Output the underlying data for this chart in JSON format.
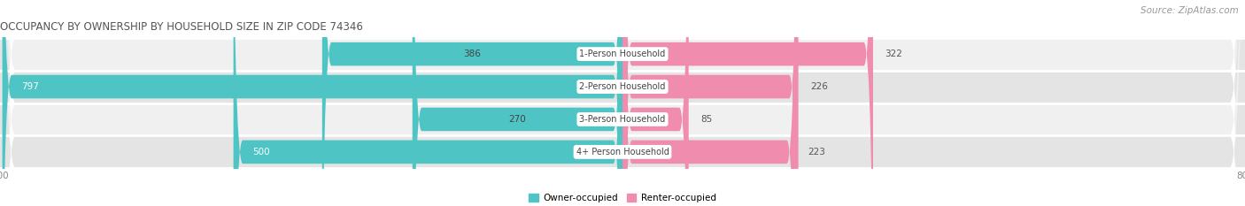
{
  "title": "OCCUPANCY BY OWNERSHIP BY HOUSEHOLD SIZE IN ZIP CODE 74346",
  "source": "Source: ZipAtlas.com",
  "categories": [
    "1-Person Household",
    "2-Person Household",
    "3-Person Household",
    "4+ Person Household"
  ],
  "owner_values": [
    386,
    797,
    270,
    500
  ],
  "renter_values": [
    322,
    226,
    85,
    223
  ],
  "owner_color": "#4ec4c4",
  "renter_color": "#f08cad",
  "owner_color_light": "#a8e0e0",
  "renter_color_light": "#f5bdd0",
  "row_bg_colors": [
    "#f0f0f0",
    "#e4e4e4",
    "#f0f0f0",
    "#e4e4e4"
  ],
  "axis_min": -800,
  "axis_max": 800,
  "figsize": [
    14.06,
    2.33
  ],
  "dpi": 100,
  "title_fontsize": 8.5,
  "source_fontsize": 7.5,
  "bar_label_fontsize": 7.5,
  "category_label_fontsize": 7,
  "legend_fontsize": 7.5,
  "axis_label_fontsize": 7.5
}
